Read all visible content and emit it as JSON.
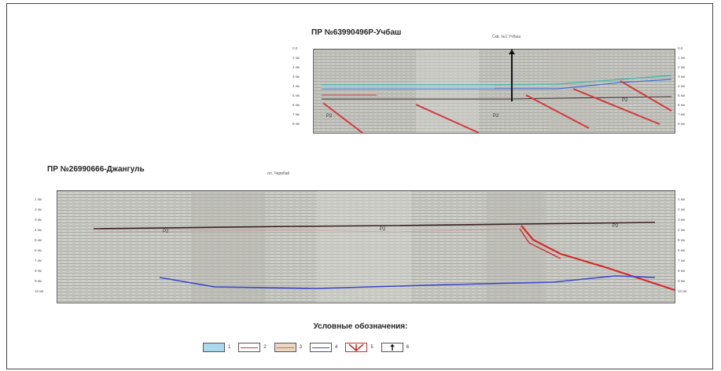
{
  "profile_top": {
    "title": "ПР №63990496Р-Учбаш",
    "well_label": "Скв. №1 Учбаш",
    "left_depth_ticks": [
      "0.0",
      "1 км",
      "2 км",
      "3 км",
      "4 км",
      "5 км",
      "6 км",
      "7 км",
      "8 км"
    ],
    "right_depth_ticks": [
      "0.0",
      "1 км",
      "2 км",
      "3 км",
      "4 км",
      "5 км",
      "6 км",
      "7 км",
      "8 км"
    ],
    "horizon_labels": [
      "P2",
      "P2",
      "P2"
    ],
    "colors": {
      "blue_horizon": "#3f74d6",
      "cyan_horizon": "#4fb7b0",
      "red_fault": "#d13a3a",
      "dark_horizon": "#3a2a2a"
    }
  },
  "profile_bottom": {
    "title": "ПР №26990666-Джангуль",
    "well_label": "пл. Чарвбай",
    "left_depth_ticks": [
      "1 км",
      "2 км",
      "3 км",
      "4 км",
      "5 км",
      "6 км",
      "7 км",
      "8 км",
      "9 км",
      "10 км"
    ],
    "right_depth_ticks": [
      "1 км",
      "2 км",
      "3 км",
      "4 км",
      "5 км",
      "6 км",
      "7 км",
      "8 км",
      "9 км",
      "10 км"
    ],
    "horizon_labels": [
      "P2",
      "P2",
      "P2"
    ],
    "colors": {
      "dark_horizon": "#3a2020",
      "blue_horizon": "#3b46c9",
      "red_fault": "#d42a2a"
    }
  },
  "legend": {
    "title": "Условные обозначения:",
    "items": [
      {
        "num": "1",
        "type": "cyan-fill",
        "color": "#a9d9ea"
      },
      {
        "num": "2",
        "type": "red-line",
        "color": "#c43a3a"
      },
      {
        "num": "3",
        "type": "tan-fill",
        "color": "#d8b99a"
      },
      {
        "num": "4",
        "type": "blue-line",
        "color": "#3b46c9"
      },
      {
        "num": "5",
        "type": "fault-symbol",
        "color": "#d42a2a"
      },
      {
        "num": "6",
        "type": "well-symbol",
        "color": "#111111"
      }
    ]
  }
}
